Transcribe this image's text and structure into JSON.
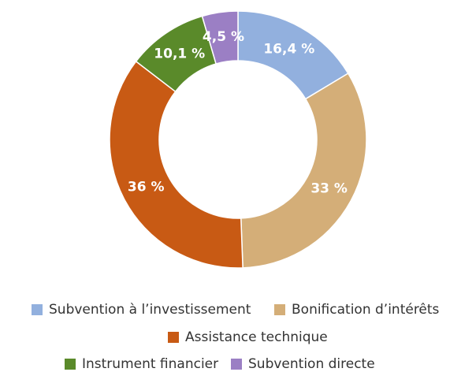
{
  "chart_data": {
    "type": "donut",
    "categories": [
      "Subvention à l’investissement",
      "Bonification d’intérêts",
      "Assistance technique",
      "Instrument financier",
      "Subvention directe"
    ],
    "values": [
      16.4,
      33,
      36,
      10.1,
      4.5
    ],
    "value_labels": [
      "16,4 %",
      "33 %",
      "36 %",
      "10,1 %",
      "4,5 %"
    ],
    "colors": [
      "#92b0de",
      "#d4ae78",
      "#c85a14",
      "#5a8a2a",
      "#9b7fc4"
    ]
  }
}
